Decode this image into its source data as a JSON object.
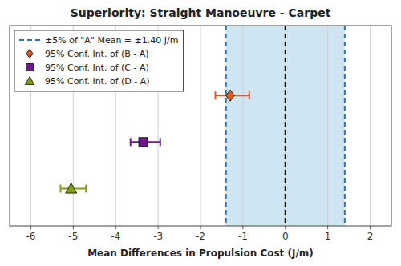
{
  "chart_data": {
    "type": "errorbar",
    "orientation": "horizontal",
    "title": "Superiority: Straight Manoeuvre - Carpet",
    "xlabel": "Mean Differences in Propulsion Cost (J/m)",
    "xlim": [
      -6.5,
      2.5
    ],
    "xticks": [
      -6,
      -5,
      -4,
      -3,
      -2,
      -1,
      0,
      1,
      2
    ],
    "grid": true,
    "legend": "upper left",
    "tick_labels": "x",
    "reference_band": {
      "values": [
        -1.4,
        1.4
      ],
      "color": "#a8d0e8"
    },
    "reference_lines": [
      {
        "name": "±5% of \"A\" Mean = ±1.40 J/m",
        "color": "#3070b0",
        "line_style": "dashed",
        "values": [
          -1.4,
          1.4
        ]
      },
      {
        "color": "black",
        "line_style": "dashed",
        "values": [
          0
        ]
      }
    ],
    "series": [
      {
        "name": "95% Conf. Int. of (B - A)",
        "color": "#e55a1a",
        "marker": "diamond",
        "values": [
          -1.3
        ],
        "ci_low": [
          -1.65
        ],
        "ci_high": [
          -0.85
        ]
      },
      {
        "name": "95% Conf. Int. of (C - A)",
        "color": "#6a1a8a",
        "marker": "square",
        "values": [
          -3.35
        ],
        "ci_low": [
          -3.65
        ],
        "ci_high": [
          -2.95
        ]
      },
      {
        "name": "95% Conf. Int. of (D - A)",
        "color": "#80a010",
        "marker": "triangle",
        "values": [
          -5.05
        ],
        "ci_low": [
          -5.3
        ],
        "ci_high": [
          -4.7
        ]
      }
    ]
  }
}
